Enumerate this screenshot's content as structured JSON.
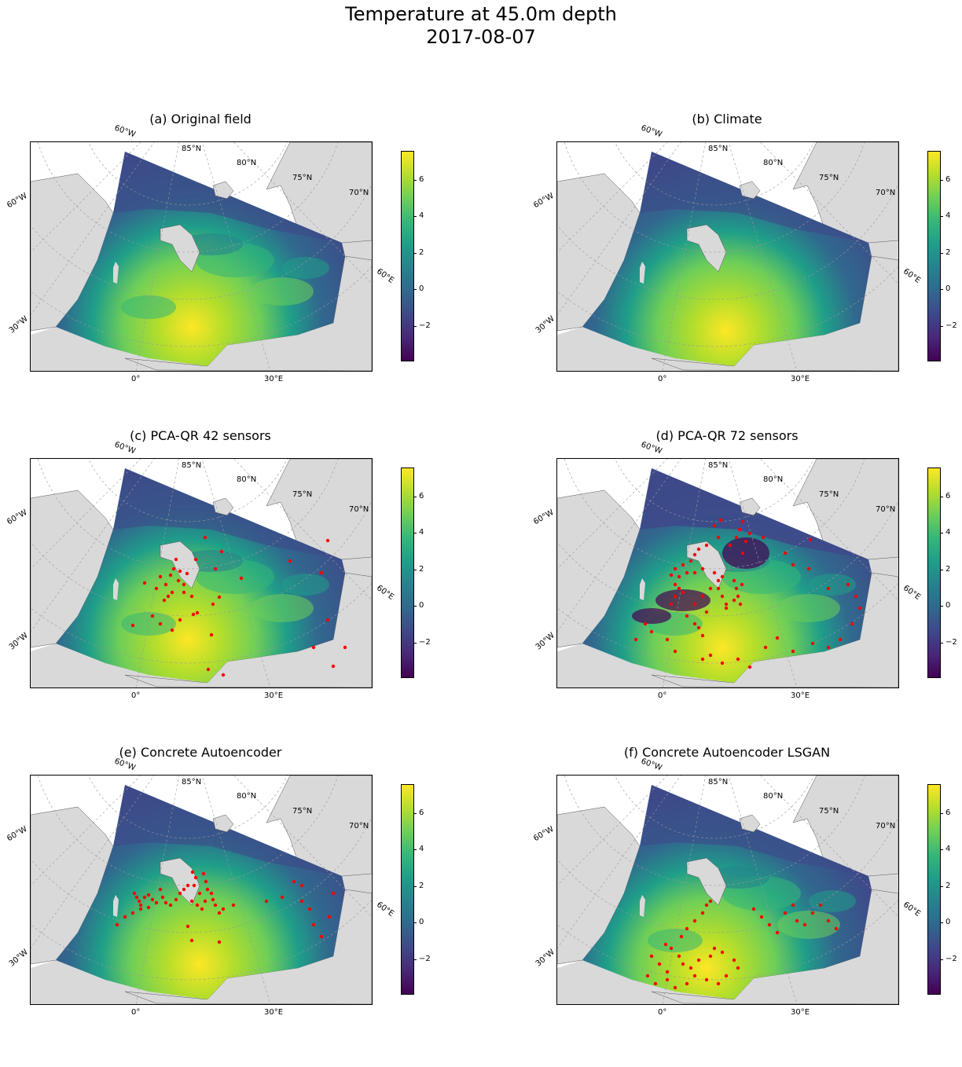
{
  "figure": {
    "title_line1": "Temperature at 45.0m depth",
    "title_line2": "2017-08-07"
  },
  "colormap": {
    "name": "viridis",
    "colors": [
      "#440154",
      "#482878",
      "#3e4989",
      "#31688e",
      "#26828e",
      "#1f9e89",
      "#35b779",
      "#6ece58",
      "#b5de2b",
      "#fde725"
    ],
    "range": [
      -3.5,
      7.5
    ],
    "ticks": [
      "6",
      "4",
      "2",
      "0",
      "−2"
    ],
    "land_color": "#d9d9d9",
    "sensor_color": "#ff0000"
  },
  "gridlines": {
    "lat_labels": [
      "85°N",
      "80°N",
      "75°N",
      "70°N"
    ],
    "lon_labels_top": [
      "60°W"
    ],
    "lon_labels_left": [
      "60°W",
      "30°W"
    ],
    "lon_labels_right": [
      "60°E"
    ],
    "lon_labels_bottom": [
      "0°",
      "30°E"
    ]
  },
  "panels": [
    {
      "title": "(a) Original field",
      "sensors": 0,
      "variant": "original"
    },
    {
      "title": "(b) Climate",
      "sensors": 0,
      "variant": "climate"
    },
    {
      "title": "(c) PCA-QR 42 sensors",
      "sensors": 42,
      "variant": "pca42"
    },
    {
      "title": "(d) PCA-QR 72 sensors",
      "sensors": 72,
      "variant": "pca72"
    },
    {
      "title": "(e) Concrete Autoencoder",
      "sensors": 51,
      "variant": "cae"
    },
    {
      "title": "(f) Concrete Autoencoder LSGAN",
      "sensors": 41,
      "variant": "lsgan"
    }
  ]
}
